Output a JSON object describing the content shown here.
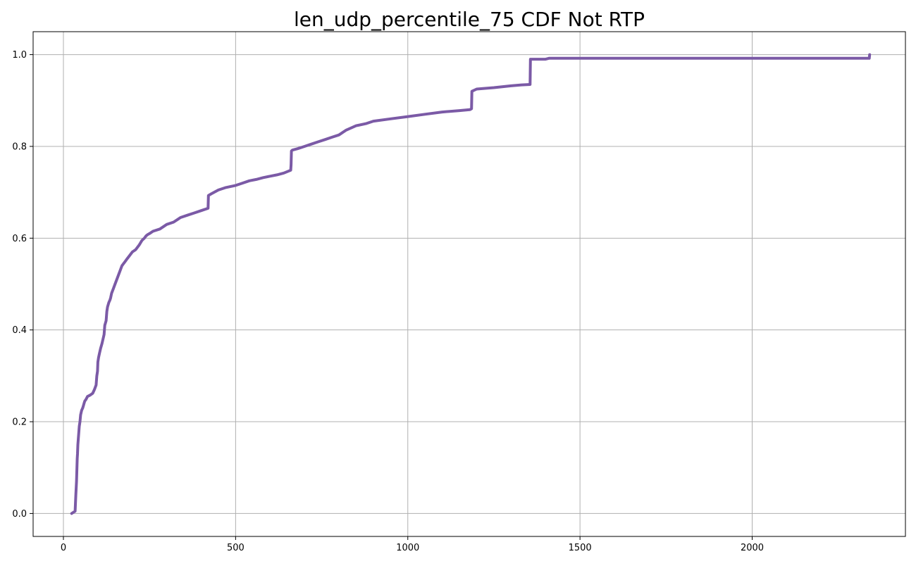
{
  "chart_data": {
    "type": "line",
    "title": "len_udp_percentile_75 CDF Not RTP",
    "xlabel": "",
    "ylabel": "",
    "xlim": [
      -88,
      2445
    ],
    "ylim": [
      -0.05,
      1.05
    ],
    "xticks": [
      0,
      500,
      1000,
      1500,
      2000
    ],
    "xtick_labels": [
      "0",
      "500",
      "1000",
      "1500",
      "2000"
    ],
    "yticks": [
      0.0,
      0.2,
      0.4,
      0.6,
      0.8,
      1.0
    ],
    "ytick_labels": [
      "0.0",
      "0.2",
      "0.4",
      "0.6",
      "0.8",
      "1.0"
    ],
    "grid": true,
    "line_color": "#7b5aa6",
    "series": [
      {
        "x": [
          24,
          34,
          36,
          38,
          40,
          41,
          42,
          44,
          46,
          48,
          50,
          53,
          56,
          58,
          60,
          62,
          65,
          70,
          78,
          85,
          90,
          95,
          96,
          97,
          99,
          100,
          102,
          105,
          108,
          112,
          115,
          118,
          120,
          124,
          126,
          128,
          132,
          135,
          137,
          140,
          145,
          150,
          160,
          170,
          180,
          185,
          190,
          200,
          210,
          220,
          228,
          235,
          240,
          245,
          250,
          260,
          280,
          300,
          320,
          340,
          360,
          380,
          400,
          420,
          421,
          430,
          450,
          470,
          500,
          520,
          540,
          560,
          580,
          600,
          620,
          640,
          650,
          660,
          661,
          662,
          665,
          680,
          700,
          720,
          740,
          760,
          780,
          800,
          820,
          850,
          880,
          900,
          950,
          1000,
          1050,
          1100,
          1150,
          1180,
          1185,
          1186,
          1200,
          1250,
          1300,
          1330,
          1355,
          1356,
          1360,
          1400,
          1410,
          1500,
          2000,
          2330,
          2340,
          2341
        ],
        "y": [
          0.0,
          0.005,
          0.04,
          0.07,
          0.12,
          0.13,
          0.15,
          0.17,
          0.19,
          0.2,
          0.215,
          0.225,
          0.23,
          0.235,
          0.24,
          0.245,
          0.248,
          0.255,
          0.258,
          0.262,
          0.27,
          0.28,
          0.29,
          0.3,
          0.31,
          0.33,
          0.34,
          0.35,
          0.36,
          0.37,
          0.38,
          0.39,
          0.41,
          0.42,
          0.44,
          0.45,
          0.46,
          0.465,
          0.47,
          0.48,
          0.49,
          0.5,
          0.52,
          0.54,
          0.55,
          0.555,
          0.56,
          0.57,
          0.575,
          0.585,
          0.595,
          0.6,
          0.605,
          0.608,
          0.61,
          0.615,
          0.62,
          0.63,
          0.635,
          0.645,
          0.65,
          0.655,
          0.66,
          0.665,
          0.693,
          0.697,
          0.705,
          0.71,
          0.715,
          0.72,
          0.725,
          0.728,
          0.732,
          0.735,
          0.738,
          0.742,
          0.745,
          0.748,
          0.76,
          0.79,
          0.792,
          0.795,
          0.8,
          0.805,
          0.81,
          0.815,
          0.82,
          0.825,
          0.835,
          0.845,
          0.85,
          0.855,
          0.86,
          0.865,
          0.87,
          0.875,
          0.878,
          0.88,
          0.882,
          0.92,
          0.925,
          0.928,
          0.932,
          0.934,
          0.935,
          0.99,
          0.99,
          0.99,
          0.992,
          0.992,
          0.992,
          0.992,
          0.992,
          1.0
        ]
      }
    ]
  }
}
